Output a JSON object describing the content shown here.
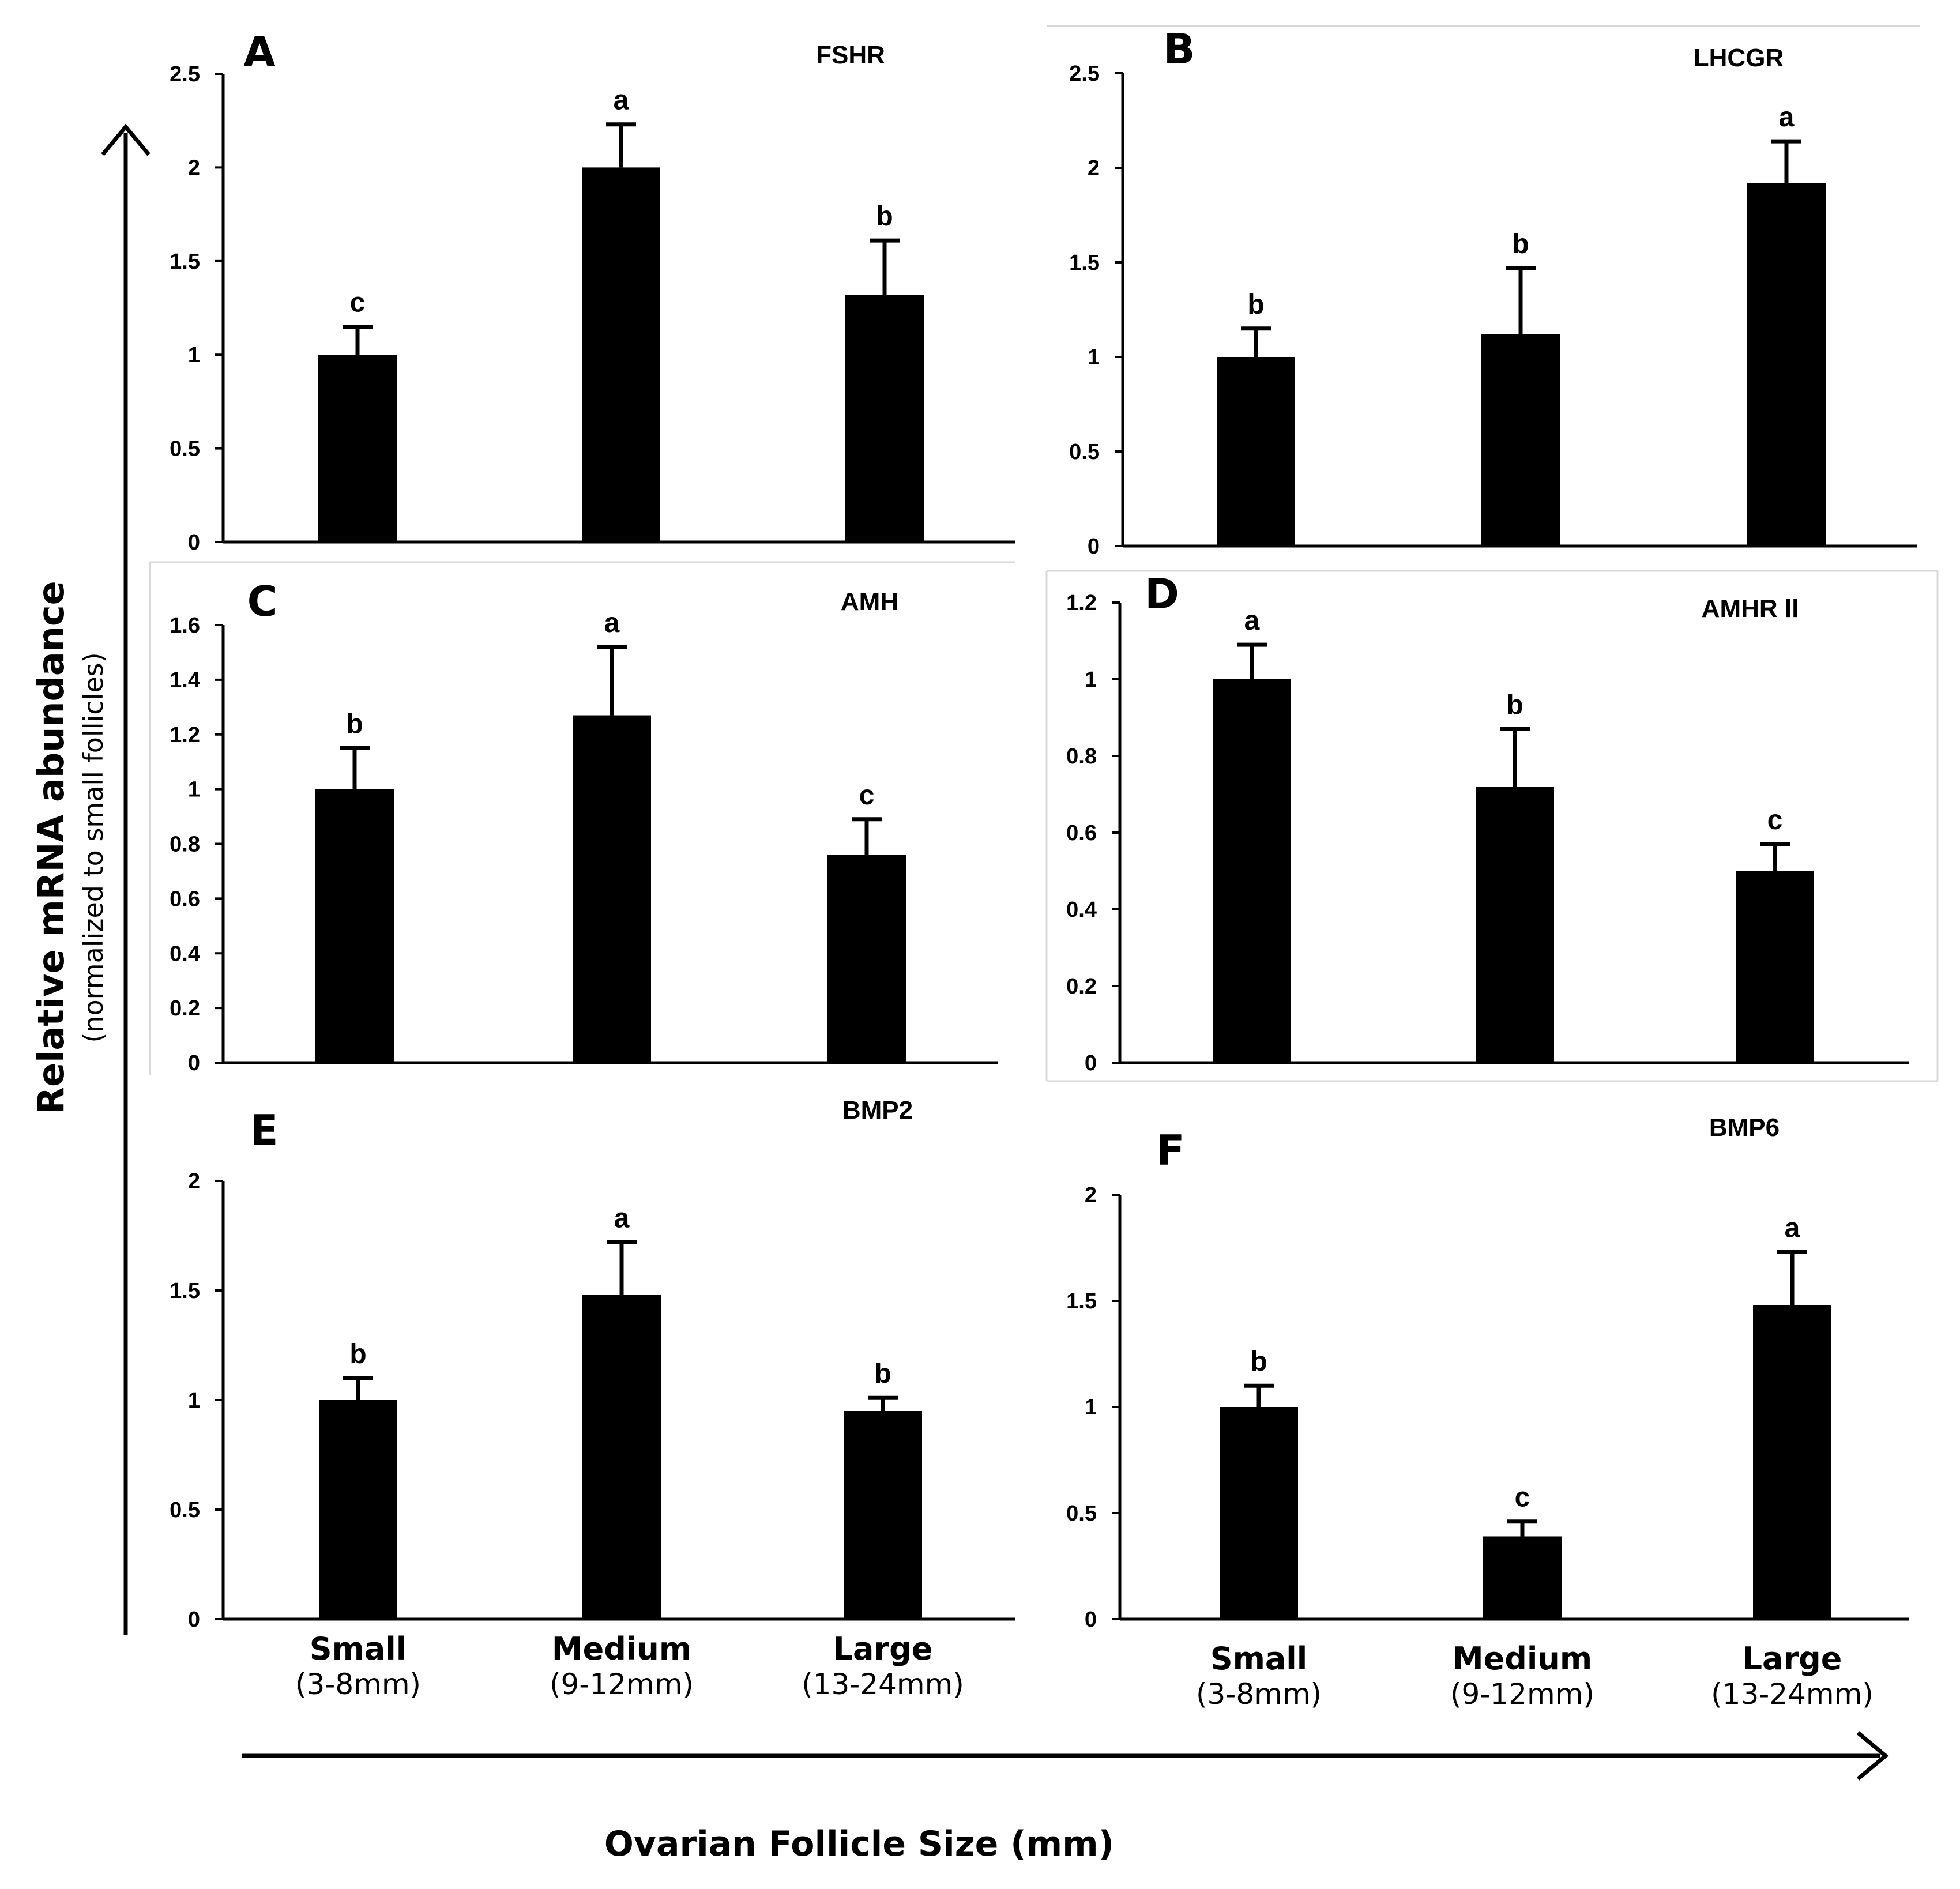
{
  "figure": {
    "y_axis_label": "Relative mRNA abundance",
    "y_axis_sublabel": "(normalized to small follicles)",
    "x_axis_label": "Ovarian Follicle Size (mm)",
    "categories": [
      {
        "name": "Small",
        "range": "(3-8mm)"
      },
      {
        "name": "Medium",
        "range": "(9-12mm)"
      },
      {
        "name": "Large",
        "range": "(13-24mm)"
      }
    ],
    "colors": {
      "bars": "#000000",
      "axes": "#000000",
      "panel_border": "#d9d9d9"
    }
  },
  "chart_data": [
    {
      "type": "bar",
      "panel": "A",
      "title": "FSHR",
      "categories": [
        "Small",
        "Medium",
        "Large"
      ],
      "values": [
        1.0,
        2.0,
        1.32
      ],
      "errors": [
        0.15,
        0.23,
        0.29
      ],
      "significance": [
        "c",
        "a",
        "b"
      ],
      "ylim": [
        0,
        2.5
      ],
      "yticks": [
        0,
        0.5,
        1,
        1.5,
        2,
        2.5
      ],
      "ytick_labels": [
        "0",
        "0.5",
        "1",
        "1.5",
        "2",
        "2.5"
      ]
    },
    {
      "type": "bar",
      "panel": "B",
      "title": "LHCGR",
      "categories": [
        "Small",
        "Medium",
        "Large"
      ],
      "values": [
        1.0,
        1.12,
        1.92
      ],
      "errors": [
        0.15,
        0.35,
        0.22
      ],
      "significance": [
        "b",
        "b",
        "a"
      ],
      "ylim": [
        0,
        2.5
      ],
      "yticks": [
        0,
        0.5,
        1,
        1.5,
        2,
        2.5
      ],
      "ytick_labels": [
        "0",
        "0.5",
        "1",
        "1.5",
        "2",
        "2.5"
      ]
    },
    {
      "type": "bar",
      "panel": "C",
      "title": "AMH",
      "categories": [
        "Small",
        "Medium",
        "Large"
      ],
      "values": [
        1.0,
        1.27,
        0.76
      ],
      "errors": [
        0.15,
        0.25,
        0.13
      ],
      "significance": [
        "b",
        "a",
        "c"
      ],
      "ylim": [
        0,
        1.6
      ],
      "yticks": [
        0,
        0.2,
        0.4,
        0.6,
        0.8,
        1,
        1.2,
        1.4,
        1.6
      ],
      "ytick_labels": [
        "0",
        "0.2",
        "0.4",
        "0.6",
        "0.8",
        "1",
        "1.2",
        "1.4",
        "1.6"
      ]
    },
    {
      "type": "bar",
      "panel": "D",
      "title": "AMHR ll",
      "categories": [
        "Small",
        "Medium",
        "Large"
      ],
      "values": [
        1.0,
        0.72,
        0.5
      ],
      "errors": [
        0.09,
        0.15,
        0.07
      ],
      "significance": [
        "a",
        "b",
        "c"
      ],
      "ylim": [
        0,
        1.2
      ],
      "yticks": [
        0,
        0.2,
        0.4,
        0.6,
        0.8,
        1,
        1.2
      ],
      "ytick_labels": [
        "0",
        "0.2",
        "0.4",
        "0.6",
        "0.8",
        "1",
        "1.2"
      ]
    },
    {
      "type": "bar",
      "panel": "E",
      "title": "BMP2",
      "categories": [
        "Small",
        "Medium",
        "Large"
      ],
      "values": [
        1.0,
        1.48,
        0.95
      ],
      "errors": [
        0.1,
        0.24,
        0.06
      ],
      "significance": [
        "b",
        "a",
        "b"
      ],
      "ylim": [
        0,
        2
      ],
      "yticks": [
        0,
        0.5,
        1,
        1.5,
        2
      ],
      "ytick_labels": [
        "0",
        "0.5",
        "1",
        "1.5",
        "2"
      ]
    },
    {
      "type": "bar",
      "panel": "F",
      "title": "BMP6",
      "categories": [
        "Small",
        "Medium",
        "Large"
      ],
      "values": [
        1.0,
        0.39,
        1.48
      ],
      "errors": [
        0.1,
        0.07,
        0.25
      ],
      "significance": [
        "b",
        "c",
        "a"
      ],
      "ylim": [
        0,
        2
      ],
      "yticks": [
        0,
        0.5,
        1,
        1.5,
        2
      ],
      "ytick_labels": [
        "0",
        "0.5",
        "1",
        "1.5",
        "2"
      ]
    }
  ]
}
